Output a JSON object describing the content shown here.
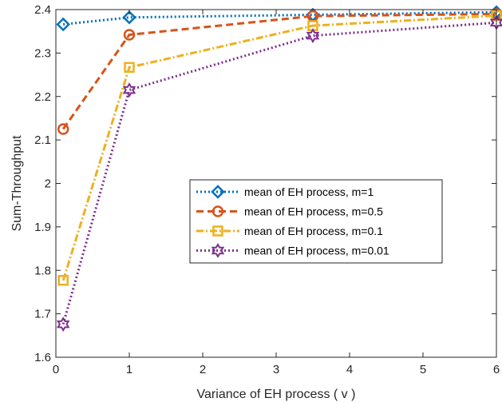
{
  "chart_data": {
    "type": "line",
    "title": "",
    "xlabel": "Variance of EH process ( v )",
    "ylabel": "Sum-Throughput",
    "xlim": [
      0,
      6
    ],
    "ylim": [
      1.6,
      2.4
    ],
    "xticks": [
      "0",
      "1",
      "2",
      "3",
      "4",
      "5",
      "6"
    ],
    "yticks": [
      "1.6",
      "1.7",
      "1.8",
      "1.9",
      "2",
      "2.1",
      "2.2",
      "2.3",
      "2.4"
    ],
    "grid": false,
    "legend_position": "center-right",
    "x": [
      0.1,
      1,
      3.5,
      6
    ],
    "series": [
      {
        "name": "mean of EH process, m=1",
        "values": [
          2.366,
          2.382,
          2.388,
          2.394
        ],
        "color": "#0072BD",
        "marker": "diamond",
        "line_style": "dotted"
      },
      {
        "name": "mean of EH process, m=0.5",
        "values": [
          2.125,
          2.342,
          2.385,
          2.39
        ],
        "color": "#D95319",
        "marker": "circle",
        "line_style": "dashed"
      },
      {
        "name": "mean of EH process, m=0.1",
        "values": [
          1.777,
          2.267,
          2.363,
          2.386
        ],
        "color": "#EDB120",
        "marker": "square",
        "line_style": "dashdot"
      },
      {
        "name": "mean of EH process, m=0.01",
        "values": [
          1.676,
          2.215,
          2.34,
          2.37
        ],
        "color": "#7E2F8E",
        "marker": "hexagram",
        "line_style": "dotted"
      }
    ]
  }
}
